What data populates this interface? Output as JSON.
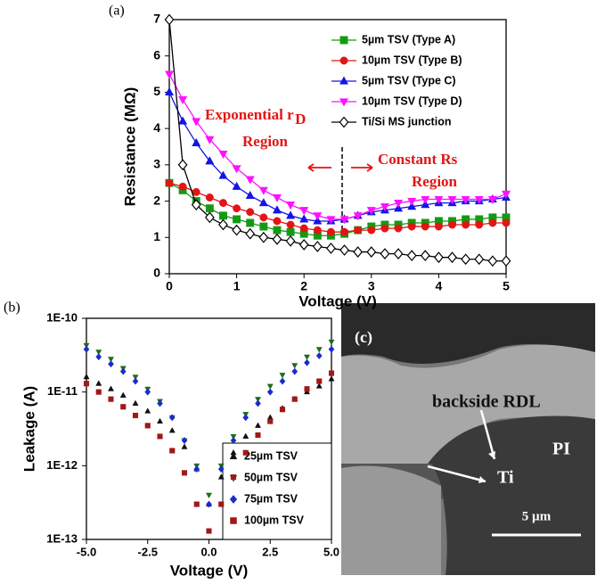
{
  "chart_data": [
    {
      "type": "line",
      "panel_label": "(a)",
      "xlabel": "Voltage (V)",
      "ylabel": "Resistance (MΩ)",
      "xlim": [
        0,
        5
      ],
      "ylim": [
        0,
        7
      ],
      "xticks": [
        0,
        1,
        2,
        3,
        4,
        5
      ],
      "yticks": [
        0,
        1,
        2,
        3,
        4,
        5,
        6,
        7
      ],
      "x": [
        0,
        0.2,
        0.4,
        0.6,
        0.8,
        1,
        1.2,
        1.4,
        1.6,
        1.8,
        2,
        2.2,
        2.4,
        2.6,
        2.8,
        3,
        3.2,
        3.4,
        3.6,
        3.8,
        4,
        4.2,
        4.4,
        4.6,
        4.8,
        5
      ],
      "series": [
        {
          "name": "5µm TSV (Type A)",
          "color": "#139a13",
          "marker": "square",
          "values": [
            2.5,
            2.3,
            2.0,
            1.8,
            1.6,
            1.5,
            1.4,
            1.3,
            1.2,
            1.15,
            1.1,
            1.05,
            1.05,
            1.1,
            1.2,
            1.3,
            1.35,
            1.35,
            1.4,
            1.4,
            1.45,
            1.45,
            1.5,
            1.5,
            1.55,
            1.55
          ]
        },
        {
          "name": "10µm TSV (Type B)",
          "color": "#e41414",
          "marker": "circle",
          "values": [
            2.5,
            2.4,
            2.25,
            2.1,
            1.95,
            1.8,
            1.7,
            1.55,
            1.45,
            1.35,
            1.25,
            1.2,
            1.15,
            1.15,
            1.2,
            1.2,
            1.25,
            1.25,
            1.3,
            1.3,
            1.3,
            1.35,
            1.35,
            1.35,
            1.4,
            1.4
          ]
        },
        {
          "name": "5µm TSV (Type C)",
          "color": "#1414e6",
          "marker": "triangle",
          "values": [
            5.0,
            4.2,
            3.6,
            3.1,
            2.7,
            2.4,
            2.15,
            1.95,
            1.75,
            1.6,
            1.5,
            1.45,
            1.45,
            1.5,
            1.6,
            1.7,
            1.75,
            1.8,
            1.85,
            1.9,
            1.95,
            1.95,
            2.0,
            2.0,
            2.05,
            2.1
          ]
        },
        {
          "name": "10µm TSV (Type D)",
          "color": "#ff10ff",
          "marker": "triangle-down",
          "values": [
            5.5,
            4.8,
            4.2,
            3.7,
            3.3,
            2.9,
            2.6,
            2.3,
            2.1,
            1.9,
            1.75,
            1.6,
            1.5,
            1.5,
            1.6,
            1.75,
            1.85,
            1.95,
            2.0,
            2.05,
            2.05,
            2.05,
            2.05,
            2.05,
            2.05,
            2.2
          ]
        },
        {
          "name": "Ti/Si MS junction",
          "color": "#000000",
          "marker": "diamond-open",
          "values": [
            7.0,
            3.0,
            1.9,
            1.55,
            1.35,
            1.2,
            1.1,
            1.0,
            0.95,
            0.9,
            0.8,
            0.75,
            0.7,
            0.65,
            0.6,
            0.6,
            0.55,
            0.55,
            0.5,
            0.5,
            0.45,
            0.45,
            0.4,
            0.4,
            0.35,
            0.35
          ]
        }
      ],
      "annotations": [
        "Exponential r",
        "D",
        "Region",
        "Constant Rs",
        "Region"
      ]
    },
    {
      "type": "scatter",
      "panel_label": "(b)",
      "xlabel": "Voltage (V)",
      "ylabel": "Leakage (A)",
      "log_y": true,
      "xlim": [
        -5,
        5
      ],
      "ylim": [
        1e-13,
        1e-10
      ],
      "xticks": [
        {
          "value": -5,
          "label": "-5.0"
        },
        {
          "value": -2.5,
          "label": "-2.5"
        },
        {
          "value": 0,
          "label": "0.0"
        },
        {
          "value": 2.5,
          "label": "2.5"
        },
        {
          "value": 5,
          "label": "5.0"
        }
      ],
      "yticks": [
        {
          "value": 1e-13,
          "label": "1E-13"
        },
        {
          "value": 1e-12,
          "label": "1E-12"
        },
        {
          "value": 1e-11,
          "label": "1E-11"
        },
        {
          "value": 1e-10,
          "label": "1E-10"
        }
      ],
      "x": [
        -5,
        -4.5,
        -4,
        -3.5,
        -3,
        -2.5,
        -2,
        -1.5,
        -1,
        -0.5,
        0,
        0.5,
        1,
        1.5,
        2,
        2.5,
        3,
        3.5,
        4,
        4.5,
        5
      ],
      "series": [
        {
          "name": "25µm TSV",
          "color": "#111111",
          "marker": "triangle",
          "values": [
            1.6e-11,
            1.3e-11,
            1.1e-11,
            9e-12,
            7e-12,
            5.5e-12,
            4e-12,
            3e-12,
            1.8e-12,
            9e-13,
            3e-13,
            7e-13,
            1.5e-12,
            2.5e-12,
            3.5e-12,
            4.5e-12,
            6e-12,
            8e-12,
            1e-11,
            1.2e-11,
            1.5e-11
          ]
        },
        {
          "name": "50µm TSV",
          "color": "#1f6b1f",
          "marker": "triangle-down",
          "values": [
            4.3e-11,
            3.5e-11,
            2.8e-11,
            2.1e-11,
            1.6e-11,
            1.1e-11,
            7.5e-12,
            4.5e-12,
            2.2e-12,
            1e-12,
            4e-13,
            1e-12,
            2.5e-12,
            5e-12,
            8e-12,
            1.2e-11,
            1.7e-11,
            2.3e-11,
            3e-11,
            3.8e-11,
            4.8e-11
          ]
        },
        {
          "name": "75µm TSV",
          "color": "#1a2ccc",
          "marker": "diamond",
          "values": [
            3.8e-11,
            3e-11,
            2.4e-11,
            1.9e-11,
            1.4e-11,
            1e-11,
            7e-12,
            4.5e-12,
            2.2e-12,
            9e-13,
            3e-13,
            9e-13,
            2.2e-12,
            4.5e-12,
            7e-12,
            1e-11,
            1.4e-11,
            1.9e-11,
            2.5e-11,
            3.1e-11,
            3.8e-11
          ]
        },
        {
          "name": "100µm TSV",
          "color": "#a01818",
          "marker": "square",
          "values": [
            1.3e-11,
            1e-11,
            8e-12,
            6.3e-12,
            4.8e-12,
            3.5e-12,
            2.5e-12,
            1.6e-12,
            8e-13,
            3e-13,
            1.3e-13,
            3e-13,
            7e-13,
            1.5e-12,
            2.6e-12,
            4e-12,
            5.8e-12,
            8e-12,
            1.1e-11,
            1.4e-11,
            1.8e-11
          ]
        }
      ]
    }
  ],
  "figure_c": {
    "panel_label": "(c)",
    "labels": [
      "backside RDL",
      "PI",
      "Ti"
    ],
    "scale_bar": "5 µm"
  }
}
